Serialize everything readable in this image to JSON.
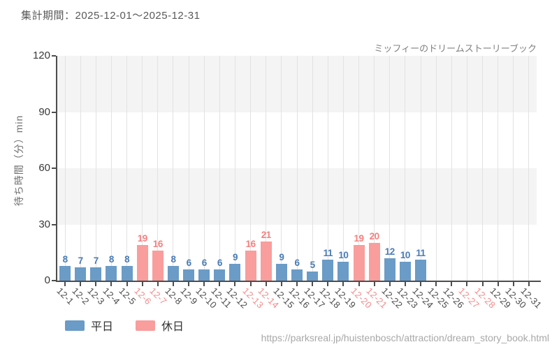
{
  "header": {
    "title": "集計期間：2025-12-01～2025-12-31"
  },
  "chart_data": {
    "type": "bar",
    "title": "ミッフィーのドリームストーリーブック",
    "xlabel": "",
    "ylabel": "待ち時間（分）min",
    "ylim": [
      0,
      120
    ],
    "yticks": [
      0,
      30,
      60,
      90,
      120
    ],
    "grid": "vertical-gridlines with alternating horizontal gray bands",
    "legend_position": "bottom-left",
    "series": [
      {
        "name": "平日",
        "key": "weekday",
        "bar_color": "#6b9bc7",
        "label_color": "#4a7cb5",
        "tick_color": "#4a4a4a"
      },
      {
        "name": "休日",
        "key": "holiday",
        "bar_color": "#f99d9d",
        "label_color": "#f57f7f",
        "tick_color": "#f58a8a"
      }
    ],
    "points": [
      {
        "date": "12-1",
        "value": 8,
        "day": "weekday"
      },
      {
        "date": "12-2",
        "value": 7,
        "day": "weekday"
      },
      {
        "date": "12-3",
        "value": 7,
        "day": "weekday"
      },
      {
        "date": "12-4",
        "value": 8,
        "day": "weekday"
      },
      {
        "date": "12-5",
        "value": 8,
        "day": "weekday"
      },
      {
        "date": "12-6",
        "value": 19,
        "day": "holiday"
      },
      {
        "date": "12-7",
        "value": 16,
        "day": "holiday"
      },
      {
        "date": "12-8",
        "value": 8,
        "day": "weekday"
      },
      {
        "date": "12-9",
        "value": 6,
        "day": "weekday"
      },
      {
        "date": "12-10",
        "value": 6,
        "day": "weekday"
      },
      {
        "date": "12-11",
        "value": 6,
        "day": "weekday"
      },
      {
        "date": "12-12",
        "value": 9,
        "day": "weekday"
      },
      {
        "date": "12-13",
        "value": 16,
        "day": "holiday"
      },
      {
        "date": "12-14",
        "value": 21,
        "day": "holiday"
      },
      {
        "date": "12-15",
        "value": 9,
        "day": "weekday"
      },
      {
        "date": "12-16",
        "value": 6,
        "day": "weekday"
      },
      {
        "date": "12-17",
        "value": 5,
        "day": "weekday"
      },
      {
        "date": "12-18",
        "value": 11,
        "day": "weekday"
      },
      {
        "date": "12-19",
        "value": 10,
        "day": "weekday"
      },
      {
        "date": "12-20",
        "value": 19,
        "day": "holiday"
      },
      {
        "date": "12-21",
        "value": 20,
        "day": "holiday"
      },
      {
        "date": "12-22",
        "value": 12,
        "day": "weekday"
      },
      {
        "date": "12-23",
        "value": 10,
        "day": "weekday"
      },
      {
        "date": "12-24",
        "value": 11,
        "day": "weekday"
      },
      {
        "date": "12-25",
        "value": null,
        "day": "weekday"
      },
      {
        "date": "12-26",
        "value": null,
        "day": "weekday"
      },
      {
        "date": "12-27",
        "value": null,
        "day": "holiday"
      },
      {
        "date": "12-28",
        "value": null,
        "day": "holiday"
      },
      {
        "date": "12-29",
        "value": null,
        "day": "weekday"
      },
      {
        "date": "12-30",
        "value": null,
        "day": "weekday"
      },
      {
        "date": "12-31",
        "value": null,
        "day": "weekday"
      }
    ]
  },
  "legend": {
    "items": [
      {
        "label": "平日",
        "color": "#6b9bc7"
      },
      {
        "label": "休日",
        "color": "#f99d9d"
      }
    ]
  },
  "footer": {
    "url": "https://parksreal.jp/huistenbosch/attraction/dream_story_book.html"
  },
  "colors": {
    "band_gray": "#f4f4f4",
    "gridline": "#e2e2e2",
    "axis": "#4d4d4d",
    "title_text": "#595959",
    "subtitle_text": "#808080",
    "url_text": "#a8a8a8"
  }
}
